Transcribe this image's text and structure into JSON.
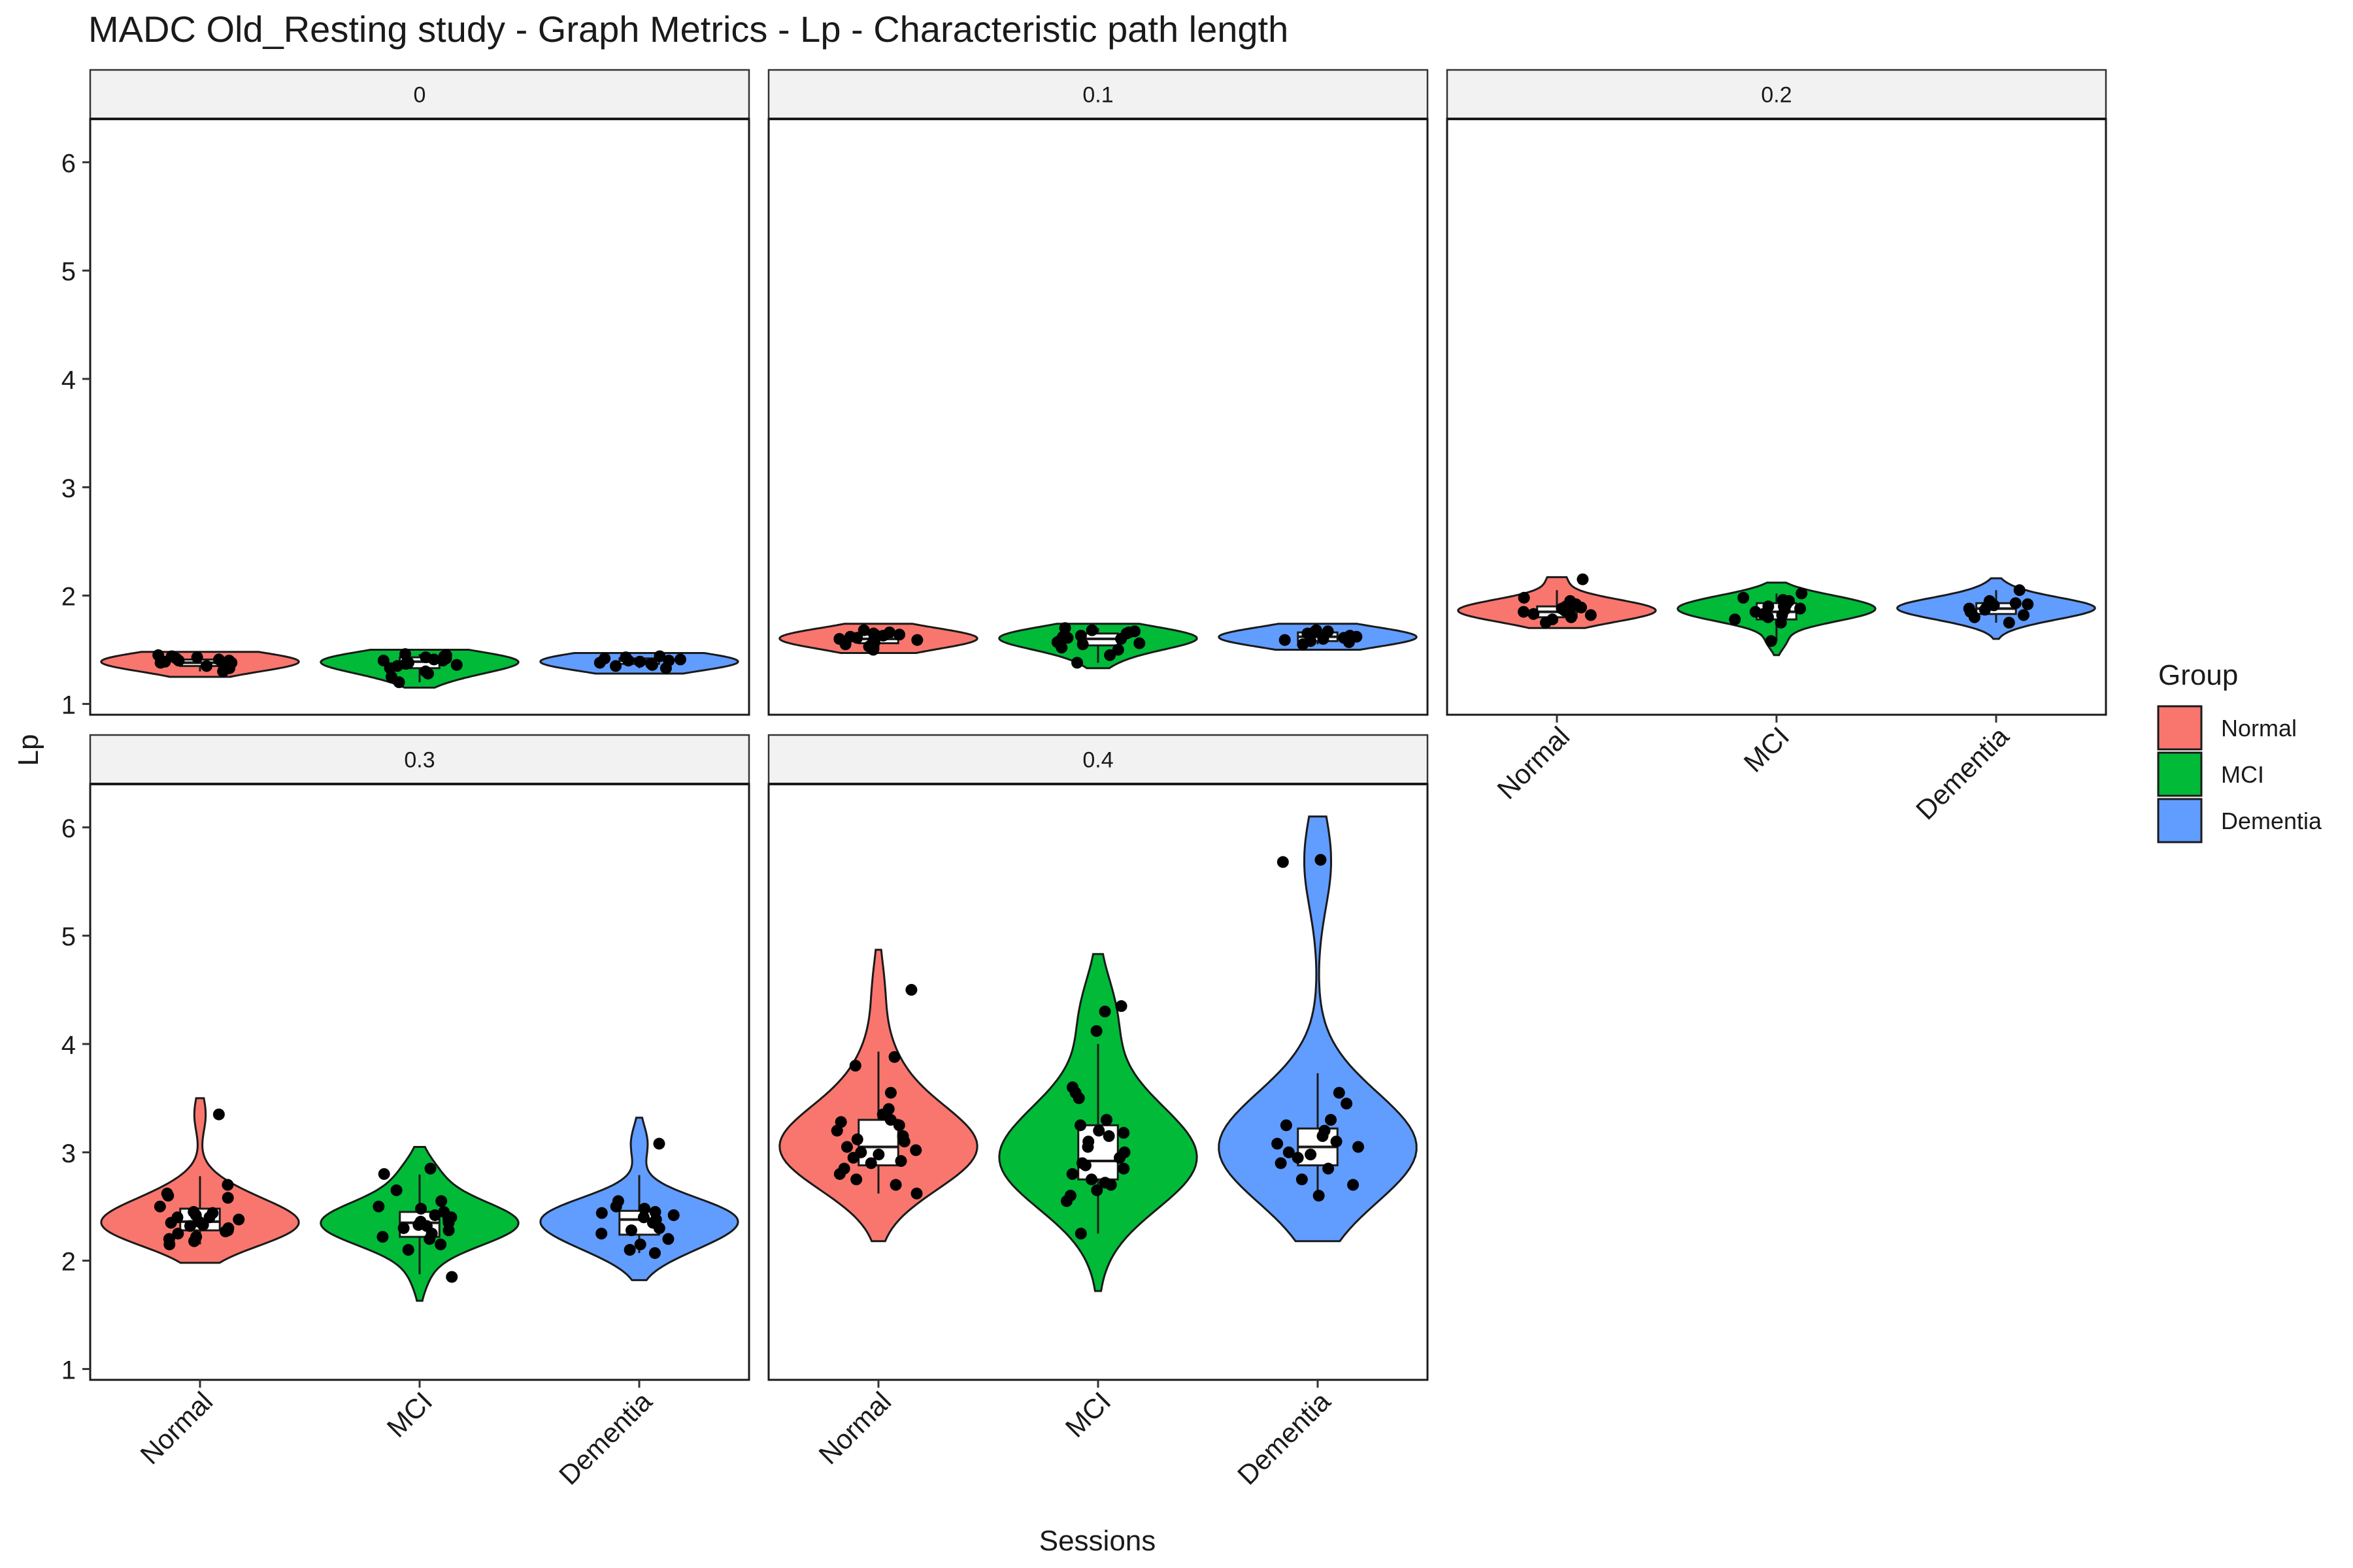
{
  "chart_data": {
    "type": "violin",
    "title": "MADC Old_Resting study - Graph Metrics - Lp - Characteristic path length",
    "xlabel": "Sessions",
    "ylabel": "Lp",
    "categories": [
      "Normal",
      "MCI",
      "Dementia"
    ],
    "y_ticks": [
      1,
      2,
      3,
      4,
      5,
      6
    ],
    "ylim": [
      0.9,
      6.4
    ],
    "grid": false,
    "legend": {
      "title": "Group",
      "position": "right",
      "entries": [
        {
          "name": "Normal",
          "color": "#F8766D"
        },
        {
          "name": "MCI",
          "color": "#00BA38"
        },
        {
          "name": "Dementia",
          "color": "#619CFF"
        }
      ]
    },
    "facets": [
      {
        "label": "0",
        "groups": [
          {
            "name": "Normal",
            "range": [
              1.25,
              1.48
            ],
            "quartiles": [
              1.35,
              1.38,
              1.41
            ],
            "points": [
              1.45,
              1.43,
              1.4,
              1.38,
              1.36,
              1.42,
              1.39,
              1.33,
              1.3,
              1.37,
              1.41,
              1.35,
              1.44,
              1.38,
              1.4
            ]
          },
          {
            "name": "MCI",
            "range": [
              1.15,
              1.5
            ],
            "quartiles": [
              1.33,
              1.39,
              1.43
            ],
            "points": [
              1.45,
              1.43,
              1.4,
              1.38,
              1.35,
              1.3,
              1.25,
              1.2,
              1.42,
              1.36,
              1.44,
              1.33,
              1.4,
              1.28,
              1.46,
              1.37,
              1.41
            ]
          },
          {
            "name": "Dementia",
            "range": [
              1.28,
              1.47
            ],
            "quartiles": [
              1.37,
              1.4,
              1.42
            ],
            "points": [
              1.42,
              1.4,
              1.38,
              1.35,
              1.43,
              1.41,
              1.37,
              1.39,
              1.44,
              1.36,
              1.4,
              1.33
            ]
          }
        ]
      },
      {
        "label": "0.1",
        "groups": [
          {
            "name": "Normal",
            "range": [
              1.47,
              1.74
            ],
            "quartiles": [
              1.56,
              1.6,
              1.64
            ],
            "points": [
              1.68,
              1.65,
              1.62,
              1.6,
              1.58,
              1.55,
              1.5,
              1.63,
              1.61,
              1.57,
              1.66,
              1.59,
              1.53,
              1.64
            ]
          },
          {
            "name": "MCI",
            "range": [
              1.33,
              1.74
            ],
            "quartiles": [
              1.54,
              1.6,
              1.65
            ],
            "points": [
              1.7,
              1.68,
              1.65,
              1.62,
              1.6,
              1.57,
              1.55,
              1.5,
              1.45,
              1.38,
              1.66,
              1.58,
              1.63,
              1.52,
              1.61,
              1.67,
              1.56
            ]
          },
          {
            "name": "Dementia",
            "range": [
              1.5,
              1.74
            ],
            "quartiles": [
              1.58,
              1.62,
              1.66
            ],
            "points": [
              1.68,
              1.66,
              1.63,
              1.6,
              1.58,
              1.55,
              1.65,
              1.62,
              1.59,
              1.67,
              1.61,
              1.57
            ]
          }
        ]
      },
      {
        "label": "0.2",
        "groups": [
          {
            "name": "Normal",
            "range": [
              1.7,
              2.17
            ],
            "quartiles": [
              1.8,
              1.85,
              1.9
            ],
            "points": [
              2.15,
              1.98,
              1.95,
              1.9,
              1.88,
              1.85,
              1.82,
              1.8,
              1.75,
              1.92,
              1.87,
              1.83,
              1.89,
              1.78,
              1.86
            ]
          },
          {
            "name": "MCI",
            "range": [
              1.45,
              2.12
            ],
            "quartiles": [
              1.78,
              1.85,
              1.93
            ],
            "points": [
              2.02,
              1.98,
              1.95,
              1.9,
              1.88,
              1.85,
              1.8,
              1.75,
              1.58,
              1.92,
              1.83,
              1.96,
              1.87,
              1.78,
              1.9,
              1.82
            ]
          },
          {
            "name": "Dementia",
            "range": [
              1.6,
              2.16
            ],
            "quartiles": [
              1.83,
              1.88,
              1.93
            ],
            "points": [
              2.05,
              1.95,
              1.92,
              1.9,
              1.88,
              1.85,
              1.8,
              1.75,
              1.93,
              1.87,
              1.82,
              1.91
            ]
          }
        ]
      },
      {
        "label": "0.3",
        "groups": [
          {
            "name": "Normal",
            "range": [
              1.98,
              3.5
            ],
            "quartiles": [
              2.28,
              2.36,
              2.48
            ],
            "points": [
              3.35,
              2.7,
              2.62,
              2.6,
              2.58,
              2.5,
              2.45,
              2.42,
              2.4,
              2.38,
              2.35,
              2.32,
              2.3,
              2.28,
              2.25,
              2.22,
              2.2,
              2.15,
              2.4,
              2.36,
              2.44,
              2.33,
              2.27,
              2.18
            ]
          },
          {
            "name": "MCI",
            "range": [
              1.63,
              3.05
            ],
            "quartiles": [
              2.22,
              2.35,
              2.45
            ],
            "points": [
              2.85,
              2.8,
              2.65,
              2.55,
              2.5,
              2.45,
              2.42,
              2.38,
              2.35,
              2.32,
              2.3,
              2.25,
              2.2,
              2.15,
              2.1,
              1.85,
              2.4,
              2.28,
              2.36,
              2.48,
              2.22,
              2.33
            ]
          },
          {
            "name": "Dementia",
            "range": [
              1.82,
              3.32
            ],
            "quartiles": [
              2.24,
              2.38,
              2.46
            ],
            "points": [
              3.08,
              2.55,
              2.5,
              2.48,
              2.45,
              2.42,
              2.4,
              2.35,
              2.3,
              2.25,
              2.2,
              2.15,
              2.1,
              2.07,
              2.38,
              2.28,
              2.44
            ]
          }
        ]
      },
      {
        "label": "0.4",
        "groups": [
          {
            "name": "Normal",
            "range": [
              2.18,
              4.87
            ],
            "quartiles": [
              2.88,
              3.05,
              3.3
            ],
            "points": [
              4.5,
              3.88,
              3.8,
              3.55,
              3.4,
              3.35,
              3.3,
              3.25,
              3.2,
              3.15,
              3.1,
              3.05,
              3.0,
              2.95,
              2.9,
              2.85,
              2.8,
              2.75,
              2.7,
              2.62,
              3.28,
              3.02,
              2.92,
              3.12,
              2.98
            ]
          },
          {
            "name": "MCI",
            "range": [
              1.72,
              4.83
            ],
            "quartiles": [
              2.75,
              2.92,
              3.25
            ],
            "points": [
              4.35,
              4.3,
              4.12,
              3.6,
              3.55,
              3.5,
              3.3,
              3.25,
              3.2,
              3.15,
              3.1,
              3.0,
              2.95,
              2.9,
              2.85,
              2.8,
              2.75,
              2.7,
              2.65,
              2.6,
              2.55,
              2.25,
              3.05,
              2.88,
              3.18,
              2.72
            ]
          },
          {
            "name": "Dementia",
            "range": [
              2.18,
              6.1
            ],
            "quartiles": [
              2.88,
              3.05,
              3.22
            ],
            "points": [
              5.7,
              5.68,
              3.55,
              3.45,
              3.3,
              3.25,
              3.2,
              3.15,
              3.1,
              3.05,
              3.0,
              2.95,
              2.9,
              2.85,
              2.75,
              2.7,
              2.6,
              3.08,
              2.98
            ]
          }
        ]
      }
    ]
  }
}
